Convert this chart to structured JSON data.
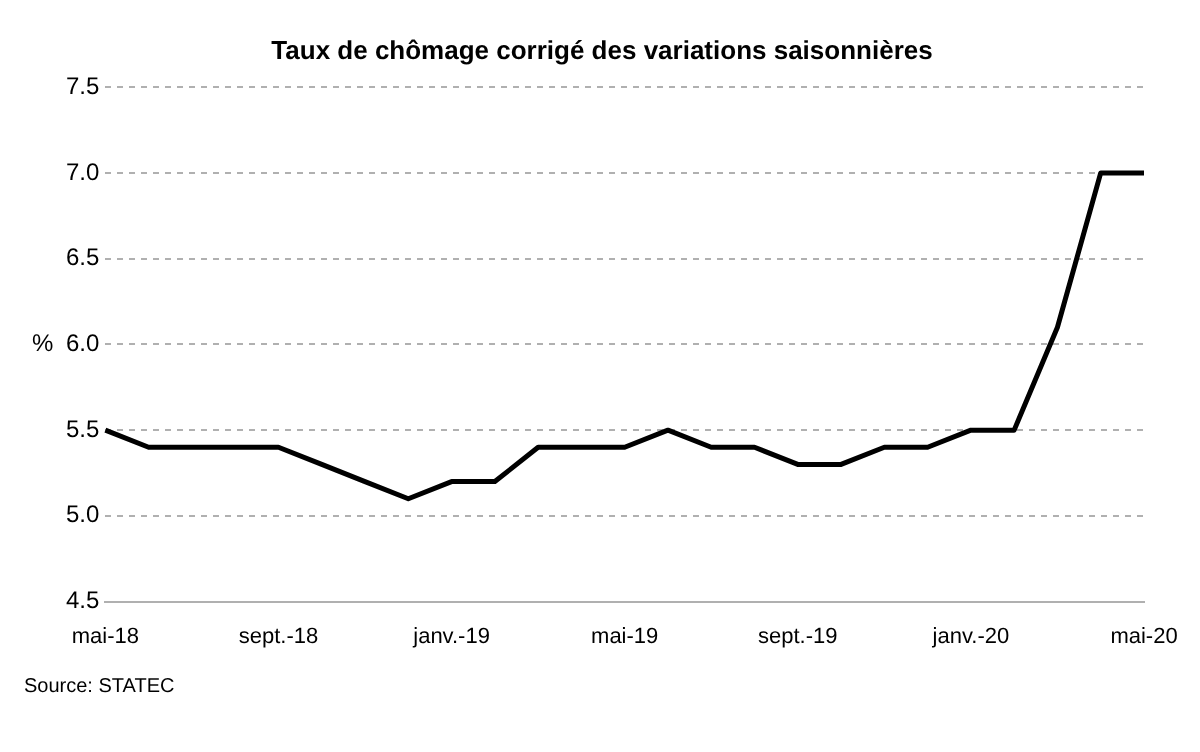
{
  "chart_data": {
    "type": "line",
    "title": "Taux de chômage corrigé des variations saisonnières",
    "ylabel": "%",
    "categories": [
      "mai-18",
      null,
      null,
      null,
      "sept.-18",
      null,
      null,
      null,
      "janv.-19",
      null,
      null,
      null,
      "mai-19",
      null,
      null,
      null,
      "sept.-19",
      null,
      null,
      null,
      "janv.-20",
      null,
      null,
      null,
      "mai-20"
    ],
    "series": [
      {
        "color": "#000000",
        "values": [
          5.5,
          5.4,
          5.4,
          5.4,
          5.4,
          5.3,
          5.2,
          5.1,
          5.2,
          5.2,
          5.4,
          5.4,
          5.4,
          5.5,
          5.4,
          5.4,
          5.3,
          5.3,
          5.4,
          5.4,
          5.5,
          5.5,
          6.1,
          7.0,
          7.0
        ]
      }
    ],
    "ylim": [
      4.5,
      7.5
    ],
    "yticks": [
      {
        "value": 4.5,
        "label": "4.5"
      },
      {
        "value": 5,
        "label": "5.0"
      },
      {
        "value": 5.5,
        "label": "5.5"
      },
      {
        "value": 6,
        "label": "6.0"
      },
      {
        "value": 6.5,
        "label": "6.5"
      },
      {
        "value": 7,
        "label": "7.0"
      },
      {
        "value": 7.5,
        "label": "7.5"
      }
    ],
    "grid": "y",
    "legend": false,
    "marker": "none",
    "line_style": "solid",
    "annotations": [
      "Source: STATEC"
    ]
  }
}
